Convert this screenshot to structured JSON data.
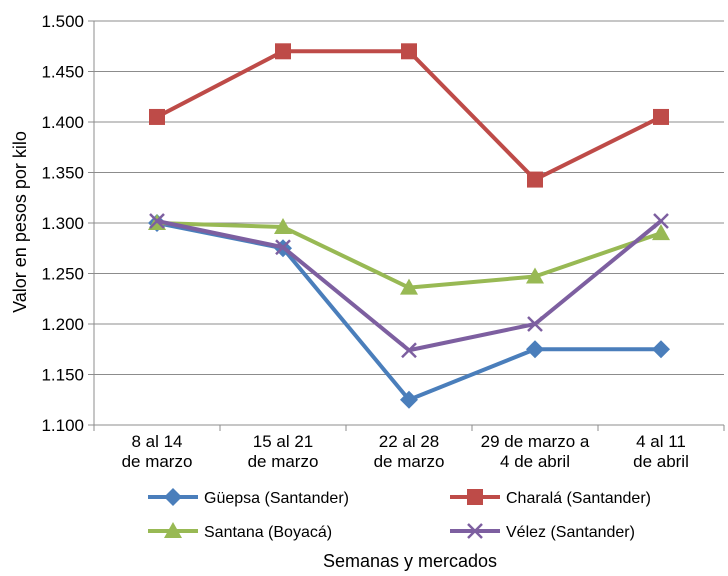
{
  "chart_data": {
    "type": "line",
    "categories": [
      [
        "8 al 14",
        "de marzo"
      ],
      [
        "15 al 21",
        "de marzo"
      ],
      [
        "22 al 28",
        "de marzo"
      ],
      [
        "29 de marzo a",
        "4 de abril"
      ],
      [
        "4 al 11",
        "de abril"
      ]
    ],
    "series": [
      {
        "name": "Güepsa (Santander)",
        "values": [
          1300,
          1275,
          1125,
          1175,
          1175
        ],
        "color": "#4a7ebb",
        "marker": "diamond"
      },
      {
        "name": "Charalá (Santander)",
        "values": [
          1405,
          1470,
          1470,
          1343,
          1405
        ],
        "color": "#be4b48",
        "marker": "square"
      },
      {
        "name": "Santana (Boyacá)",
        "values": [
          1300,
          1296,
          1236,
          1247,
          1290
        ],
        "color": "#98b954",
        "marker": "triangle"
      },
      {
        "name": "Vélez (Santander)",
        "values": [
          1302,
          1276,
          1174,
          1200,
          1302
        ],
        "color": "#7d5fa0",
        "marker": "x"
      }
    ],
    "ylabel": "Valor en pesos por kilo",
    "xlabel": "Semanas y mercados",
    "ylim": [
      1100,
      1500
    ],
    "ytick_step": 50,
    "ytick_labels": [
      "1.100",
      "1.150",
      "1.200",
      "1.250",
      "1.300",
      "1.350",
      "1.400",
      "1.450",
      "1.500"
    ],
    "grid": true,
    "legend_position": "bottom"
  }
}
